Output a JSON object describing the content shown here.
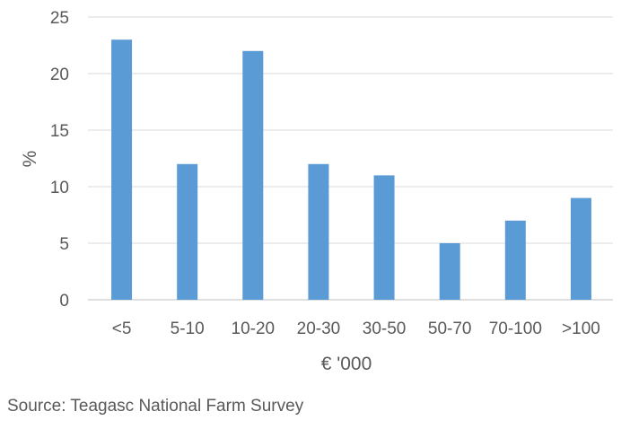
{
  "chart_data": {
    "type": "bar",
    "categories": [
      "<5",
      "5-10",
      "10-20",
      "20-30",
      "30-50",
      "50-70",
      "70-100",
      ">100"
    ],
    "values": [
      23,
      12,
      22,
      12,
      11,
      5,
      7,
      9
    ],
    "xlabel": "€ '000",
    "ylabel": "%",
    "ylim": [
      0,
      25
    ],
    "yticks": [
      0,
      5,
      10,
      15,
      20,
      25
    ],
    "grid": true,
    "bar_color": "#5b9bd5"
  },
  "source": "Source: Teagasc National Farm Survey"
}
